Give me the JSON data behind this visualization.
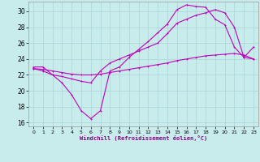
{
  "xlabel": "Windchill (Refroidissement éolien,°C)",
  "bg_color": "#c8ecec",
  "grid_color": "#b0d8d8",
  "line_color": "#bb00bb",
  "xlim": [
    -0.5,
    23.5
  ],
  "ylim": [
    15.5,
    31.2
  ],
  "xticks": [
    0,
    1,
    2,
    3,
    4,
    5,
    6,
    7,
    8,
    9,
    10,
    11,
    12,
    13,
    14,
    15,
    16,
    17,
    18,
    19,
    20,
    21,
    22,
    23
  ],
  "yticks": [
    16,
    18,
    20,
    22,
    24,
    26,
    28,
    30
  ],
  "x": [
    0,
    1,
    2,
    3,
    4,
    5,
    6,
    7,
    8,
    9,
    10,
    11,
    12,
    13,
    14,
    15,
    16,
    17,
    18,
    19,
    20,
    21,
    22,
    23
  ],
  "line1": [
    23.0,
    23.0,
    22.0,
    21.0,
    19.5,
    17.5,
    16.5,
    17.5,
    22.5,
    23.0,
    24.2,
    25.2,
    26.2,
    27.3,
    28.4,
    30.2,
    30.8,
    30.6,
    30.5,
    29.0,
    28.3,
    25.5,
    24.2,
    25.5
  ],
  "line2": [
    22.8,
    22.5,
    22.0,
    21.8,
    21.5,
    21.2,
    21.0,
    22.5,
    23.5,
    24.0,
    24.5,
    25.0,
    25.5,
    26.0,
    27.2,
    28.5,
    29.0,
    29.5,
    29.8,
    30.2,
    29.8,
    28.0,
    24.2,
    24.0
  ],
  "line3": [
    22.8,
    22.7,
    22.5,
    22.3,
    22.1,
    22.0,
    22.0,
    22.1,
    22.3,
    22.5,
    22.7,
    22.9,
    23.1,
    23.3,
    23.5,
    23.8,
    24.0,
    24.2,
    24.4,
    24.5,
    24.6,
    24.7,
    24.5,
    24.0
  ]
}
